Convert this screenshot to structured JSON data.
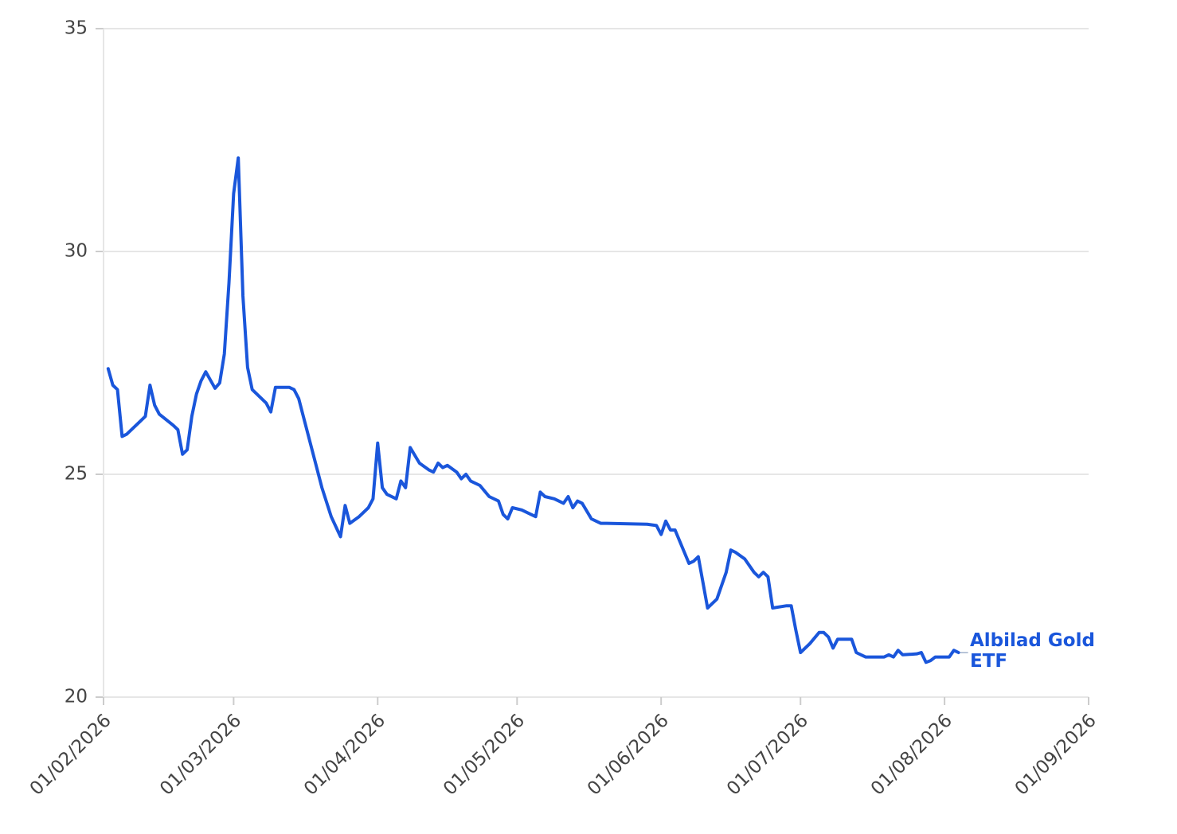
{
  "chart_data": {
    "type": "line",
    "x": [
      "02/02/2026",
      "03/02/2026",
      "04/02/2026",
      "05/02/2026",
      "06/02/2026",
      "09/02/2026",
      "10/02/2026",
      "11/02/2026",
      "12/02/2026",
      "13/02/2026",
      "16/02/2026",
      "17/02/2026",
      "18/02/2026",
      "19/02/2026",
      "20/02/2026",
      "21/02/2026",
      "22/02/2026",
      "23/02/2026",
      "25/02/2026",
      "26/02/2026",
      "27/02/2026",
      "28/02/2026",
      "01/03/2026",
      "02/03/2026",
      "03/03/2026",
      "04/03/2026",
      "05/03/2026",
      "07/03/2026",
      "08/03/2026",
      "09/03/2026",
      "10/03/2026",
      "11/03/2026",
      "13/03/2026",
      "14/03/2026",
      "15/03/2026",
      "16/03/2026",
      "18/03/2026",
      "20/03/2026",
      "22/03/2026",
      "24/03/2026",
      "25/03/2026",
      "26/03/2026",
      "28/03/2026",
      "30/03/2026",
      "31/03/2026",
      "01/04/2026",
      "02/04/2026",
      "03/04/2026",
      "05/04/2026",
      "06/04/2026",
      "07/04/2026",
      "08/04/2026",
      "10/04/2026",
      "12/04/2026",
      "13/04/2026",
      "14/04/2026",
      "15/04/2026",
      "16/04/2026",
      "18/04/2026",
      "19/04/2026",
      "20/04/2026",
      "21/04/2026",
      "23/04/2026",
      "25/04/2026",
      "27/04/2026",
      "28/04/2026",
      "29/04/2026",
      "30/04/2026",
      "02/05/2026",
      "04/05/2026",
      "05/05/2026",
      "06/05/2026",
      "07/05/2026",
      "09/05/2026",
      "11/05/2026",
      "12/05/2026",
      "13/05/2026",
      "14/05/2026",
      "15/05/2026",
      "17/05/2026",
      "18/05/2026",
      "19/05/2026",
      "20/05/2026",
      "29/05/2026",
      "31/05/2026",
      "01/06/2026",
      "02/06/2026",
      "03/06/2026",
      "04/06/2026",
      "05/06/2026",
      "07/06/2026",
      "08/06/2026",
      "09/06/2026",
      "11/06/2026",
      "13/06/2026",
      "15/06/2026",
      "16/06/2026",
      "17/06/2026",
      "19/06/2026",
      "21/06/2026",
      "22/06/2026",
      "23/06/2026",
      "24/06/2026",
      "25/06/2026",
      "28/06/2026",
      "29/06/2026",
      "30/06/2026",
      "01/07/2026",
      "03/07/2026",
      "05/07/2026",
      "06/07/2026",
      "07/07/2026",
      "08/07/2026",
      "09/07/2026",
      "12/07/2026",
      "13/07/2026",
      "15/07/2026",
      "18/07/2026",
      "19/07/2026",
      "20/07/2026",
      "21/07/2026",
      "22/07/2026",
      "23/07/2026",
      "26/07/2026",
      "27/07/2026",
      "28/07/2026",
      "29/07/2026",
      "30/07/2026",
      "02/08/2026",
      "03/08/2026",
      "04/08/2026"
    ],
    "series": [
      {
        "name": "Albilad Gold ETF",
        "color": "#1a56db",
        "values": [
          27.37,
          27.0,
          26.9,
          25.85,
          25.9,
          26.2,
          26.3,
          27.0,
          26.55,
          26.35,
          26.1,
          26.0,
          25.45,
          25.55,
          26.3,
          26.8,
          27.1,
          27.3,
          26.93,
          27.05,
          27.7,
          29.3,
          31.3,
          32.1,
          29.0,
          27.4,
          26.9,
          26.7,
          26.6,
          26.4,
          26.95,
          26.95,
          26.95,
          26.9,
          26.7,
          26.3,
          25.5,
          24.7,
          24.05,
          23.6,
          24.3,
          23.9,
          24.05,
          24.25,
          24.45,
          25.7,
          24.7,
          24.55,
          24.45,
          24.85,
          24.7,
          25.6,
          25.25,
          25.1,
          25.05,
          25.25,
          25.15,
          25.2,
          25.05,
          24.9,
          25.0,
          24.85,
          24.75,
          24.5,
          24.4,
          24.1,
          24.0,
          24.25,
          24.2,
          24.1,
          24.05,
          24.6,
          24.5,
          24.45,
          24.35,
          24.5,
          24.25,
          24.4,
          24.35,
          24.0,
          23.95,
          23.9,
          23.9,
          23.88,
          23.85,
          23.65,
          23.95,
          23.75,
          23.75,
          23.5,
          23.0,
          23.05,
          23.15,
          22.0,
          22.2,
          22.8,
          23.3,
          23.25,
          23.1,
          22.8,
          22.7,
          22.8,
          22.7,
          22.0,
          22.05,
          22.05,
          21.5,
          21.0,
          21.2,
          21.45,
          21.45,
          21.35,
          21.1,
          21.3,
          21.3,
          21.0,
          20.9,
          20.9,
          20.9,
          20.95,
          20.9,
          21.05,
          20.95,
          20.97,
          21.0,
          20.78,
          20.82,
          20.9,
          20.9,
          21.05,
          21.0
        ]
      }
    ],
    "xlim": [
      "01/02/2026",
      "01/09/2026"
    ],
    "xticks": [
      "01/02/2026",
      "01/03/2026",
      "01/04/2026",
      "01/05/2026",
      "01/06/2026",
      "01/07/2026",
      "01/08/2026",
      "01/09/2026"
    ],
    "ylim": [
      20,
      35
    ],
    "yticks": [
      20,
      25,
      30,
      35
    ],
    "grid": true
  }
}
